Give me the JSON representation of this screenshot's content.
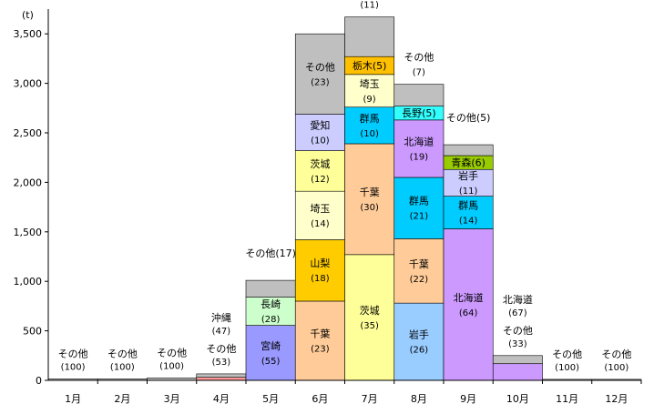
{
  "chart_data": {
    "type": "bar",
    "stacked": true,
    "unit_label": "(t)",
    "title": "",
    "xlabel": "",
    "ylabel": "",
    "ylim": [
      0,
      3750
    ],
    "y_ticks": [
      "0",
      "500",
      "1,000",
      "1,500",
      "2,000",
      "2,500",
      "3,000",
      "3,500"
    ],
    "y_tick_values": [
      0,
      500,
      1000,
      1500,
      2000,
      2500,
      3000,
      3500
    ],
    "categories": [
      "1月",
      "2月",
      "3月",
      "4月",
      "5月",
      "6月",
      "7月",
      "8月",
      "9月",
      "10月",
      "11月",
      "12月"
    ],
    "colors": {
      "その他": "#bfbfbf",
      "沖縄": "#ff9999",
      "宮崎": "#9999ff",
      "長崎": "#ccffcc",
      "千葉": "#ffcc99",
      "山梨": "#ffcc00",
      "埼玉": "#ffffcc",
      "茨城": "#ffff99",
      "愛知": "#ccccff",
      "群馬": "#00ccff",
      "栃木": "#ffc000",
      "岩手": "#99ccff",
      "北海道": "#cc99ff",
      "長野": "#33ffff",
      "青森": "#99cc00",
      "岩手9": "#ccccff"
    },
    "months": [
      {
        "month": "1月",
        "total": 15,
        "segments": [
          {
            "name": "その他",
            "pct": "(100)",
            "value": 15,
            "color": "#bfbfbf"
          }
        ]
      },
      {
        "month": "2月",
        "total": 15,
        "segments": [
          {
            "name": "その他",
            "pct": "(100)",
            "value": 15,
            "color": "#bfbfbf"
          }
        ]
      },
      {
        "month": "3月",
        "total": 25,
        "segments": [
          {
            "name": "その他",
            "pct": "(100)",
            "value": 25,
            "color": "#bfbfbf"
          }
        ]
      },
      {
        "month": "4月",
        "total": 65,
        "segments": [
          {
            "name": "沖縄",
            "pct": "(47)",
            "value": 31,
            "color": "#ff9999"
          },
          {
            "name": "その他",
            "pct": "(53)",
            "value": 34,
            "color": "#bfbfbf"
          }
        ]
      },
      {
        "month": "5月",
        "total": 1010,
        "segments": [
          {
            "name": "宮崎",
            "pct": "(55)",
            "value": 555,
            "color": "#9999ff"
          },
          {
            "name": "長崎",
            "pct": "(28)",
            "value": 285,
            "color": "#ccffcc"
          },
          {
            "name": "その他",
            "pct": "(17)",
            "value": 170,
            "color": "#bfbfbf"
          }
        ]
      },
      {
        "month": "6月",
        "total": 3500,
        "segments": [
          {
            "name": "千葉",
            "pct": "(23)",
            "value": 800,
            "color": "#ffcc99"
          },
          {
            "name": "山梨",
            "pct": "(18)",
            "value": 620,
            "color": "#ffcc00"
          },
          {
            "name": "埼玉",
            "pct": "(14)",
            "value": 490,
            "color": "#ffffcc"
          },
          {
            "name": "茨城",
            "pct": "(12)",
            "value": 410,
            "color": "#ffff99"
          },
          {
            "name": "愛知",
            "pct": "(10)",
            "value": 370,
            "color": "#ccccff"
          },
          {
            "name": "その他",
            "pct": "(23)",
            "value": 810,
            "color": "#bfbfbf"
          }
        ]
      },
      {
        "month": "7月",
        "total": 3670,
        "segments": [
          {
            "name": "茨城",
            "pct": "(35)",
            "value": 1270,
            "color": "#ffff99"
          },
          {
            "name": "千葉",
            "pct": "(30)",
            "value": 1120,
            "color": "#ffcc99"
          },
          {
            "name": "群馬",
            "pct": "(10)",
            "value": 370,
            "color": "#00ccff"
          },
          {
            "name": "埼玉",
            "pct": "(9)",
            "value": 330,
            "color": "#ffffcc"
          },
          {
            "name": "栃木",
            "pct": "(5)",
            "value": 180,
            "color": "#ffc000"
          },
          {
            "name": "その他",
            "pct": "(11)",
            "value": 400,
            "color": "#bfbfbf"
          }
        ]
      },
      {
        "month": "8月",
        "total": 2990,
        "segments": [
          {
            "name": "岩手",
            "pct": "(26)",
            "value": 780,
            "color": "#99ccff"
          },
          {
            "name": "千葉",
            "pct": "(22)",
            "value": 650,
            "color": "#ffcc99"
          },
          {
            "name": "群馬",
            "pct": "(21)",
            "value": 620,
            "color": "#00ccff"
          },
          {
            "name": "北海道",
            "pct": "(19)",
            "value": 580,
            "color": "#cc99ff"
          },
          {
            "name": "長野",
            "pct": "(5)",
            "value": 140,
            "color": "#33ffff"
          },
          {
            "name": "その他",
            "pct": "(7)",
            "value": 220,
            "color": "#bfbfbf"
          }
        ]
      },
      {
        "month": "9月",
        "total": 2380,
        "segments": [
          {
            "name": "北海道",
            "pct": "(64)",
            "value": 1530,
            "color": "#cc99ff"
          },
          {
            "name": "群馬",
            "pct": "(14)",
            "value": 330,
            "color": "#00ccff"
          },
          {
            "name": "岩手",
            "pct": "(11)",
            "value": 270,
            "color": "#ccccff"
          },
          {
            "name": "青森",
            "pct": "(6)",
            "value": 140,
            "color": "#99cc00"
          },
          {
            "name": "その他",
            "pct": "(5)",
            "value": 110,
            "color": "#bfbfbf"
          }
        ]
      },
      {
        "month": "10月",
        "total": 250,
        "segments": [
          {
            "name": "北海道",
            "pct": "(67)",
            "value": 168,
            "color": "#cc99ff"
          },
          {
            "name": "その他",
            "pct": "(33)",
            "value": 82,
            "color": "#bfbfbf"
          }
        ]
      },
      {
        "month": "11月",
        "total": 10,
        "segments": [
          {
            "name": "その他",
            "pct": "(100)",
            "value": 10,
            "color": "#bfbfbf"
          }
        ]
      },
      {
        "month": "12月",
        "total": 10,
        "segments": [
          {
            "name": "その他",
            "pct": "(100)",
            "value": 10,
            "color": "#bfbfbf"
          }
        ]
      }
    ]
  }
}
